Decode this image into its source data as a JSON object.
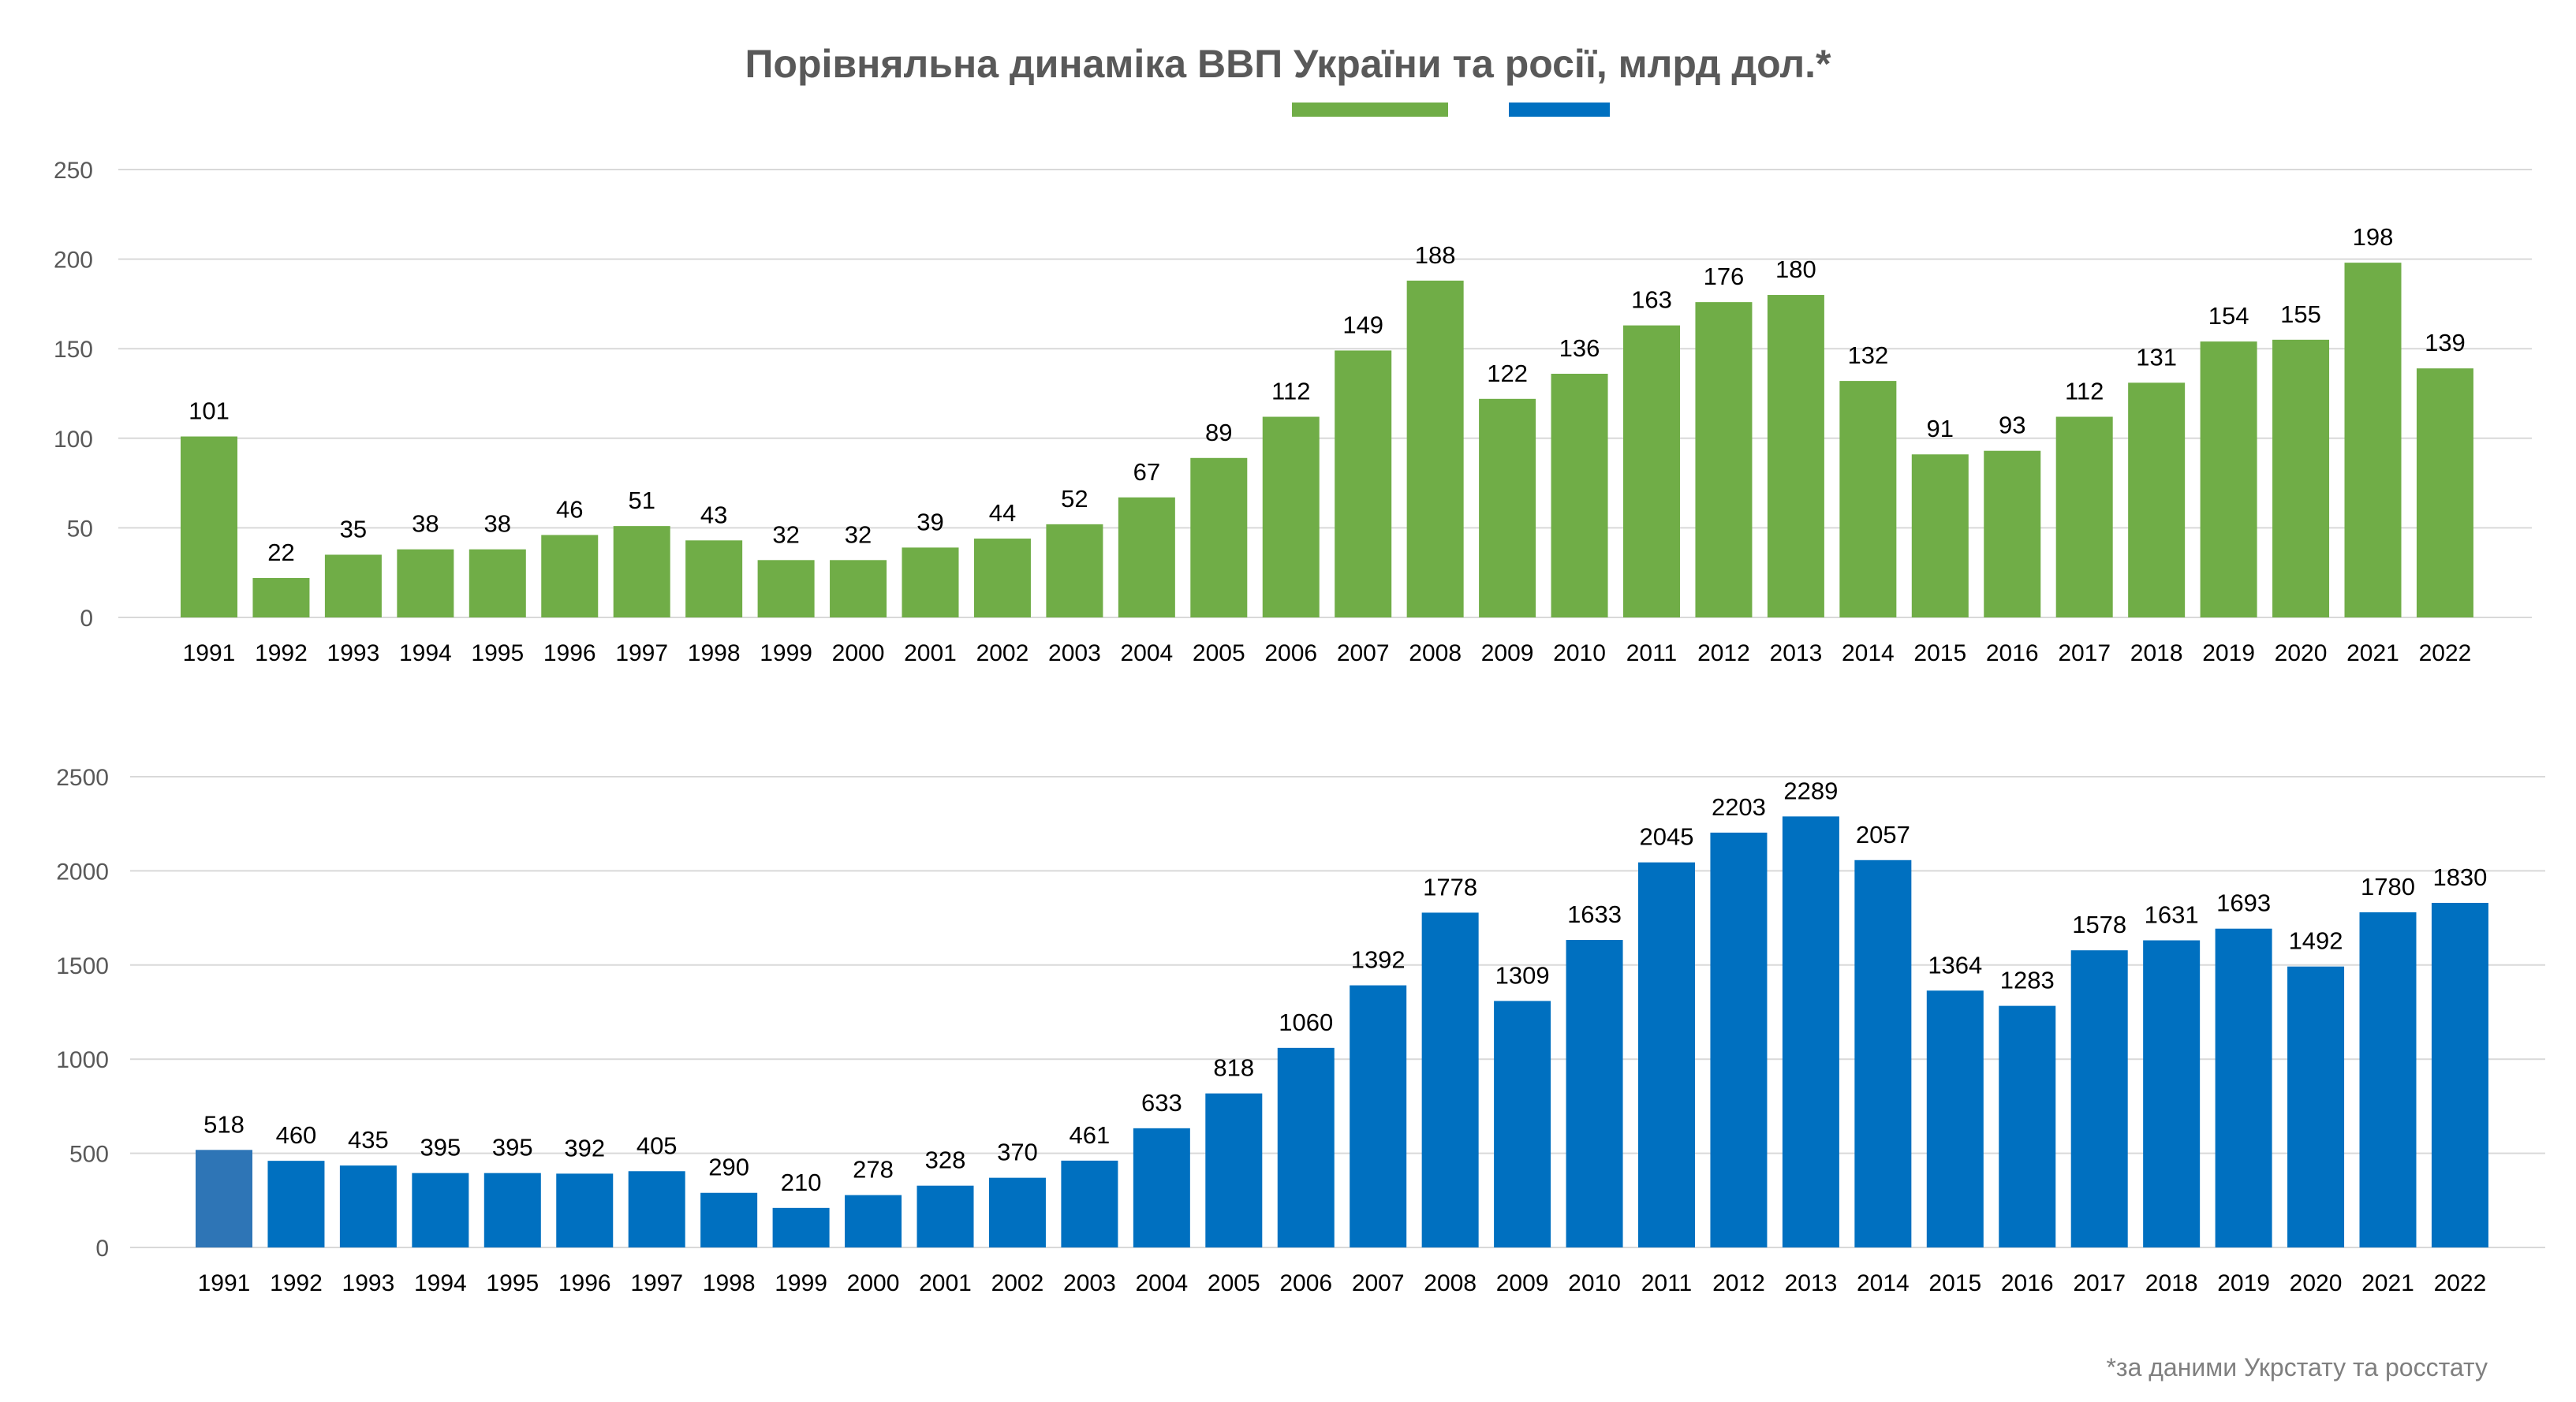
{
  "title": "Порівняльна динаміка ВВП України та росії, млрд дол.*",
  "footnote": "*за даними Укрстату та росстату",
  "colors": {
    "ukraine": "#70AD47",
    "russia": "#0070C0",
    "russia_first": "#2E75B6",
    "grid": "#d9d9d9",
    "text": "#000000",
    "axis_text": "#595959"
  },
  "chart_data": [
    {
      "type": "bar",
      "categories": [
        "1991",
        "1992",
        "1993",
        "1994",
        "1995",
        "1996",
        "1997",
        "1998",
        "1999",
        "2000",
        "2001",
        "2002",
        "2003",
        "2004",
        "2005",
        "2006",
        "2007",
        "2008",
        "2009",
        "2010",
        "2011",
        "2012",
        "2013",
        "2014",
        "2015",
        "2016",
        "2017",
        "2018",
        "2019",
        "2020",
        "2021",
        "2022"
      ],
      "values": [
        101,
        22,
        35,
        38,
        38,
        46,
        51,
        43,
        32,
        32,
        39,
        44,
        52,
        67,
        89,
        112,
        149,
        188,
        122,
        136,
        163,
        176,
        180,
        132,
        91,
        93,
        112,
        131,
        154,
        155,
        198,
        139
      ],
      "ylim": [
        0,
        250
      ],
      "yticks": [
        0,
        50,
        100,
        150,
        200,
        250
      ],
      "color": "#70AD47",
      "grid": true
    },
    {
      "type": "bar",
      "categories": [
        "1991",
        "1992",
        "1993",
        "1994",
        "1995",
        "1996",
        "1997",
        "1998",
        "1999",
        "2000",
        "2001",
        "2002",
        "2003",
        "2004",
        "2005",
        "2006",
        "2007",
        "2008",
        "2009",
        "2010",
        "2011",
        "2012",
        "2013",
        "2014",
        "2015",
        "2016",
        "2017",
        "2018",
        "2019",
        "2020",
        "2021",
        "2022"
      ],
      "values": [
        518,
        460,
        435,
        395,
        395,
        392,
        405,
        290,
        210,
        278,
        328,
        370,
        461,
        633,
        818,
        1060,
        1392,
        1778,
        1309,
        1633,
        2045,
        2203,
        2289,
        2057,
        1364,
        1283,
        1578,
        1631,
        1693,
        1492,
        1780,
        1830
      ],
      "ylim": [
        0,
        2500
      ],
      "yticks": [
        0,
        500,
        1000,
        1500,
        2000,
        2500
      ],
      "color": "#0070C0",
      "grid": true
    }
  ]
}
